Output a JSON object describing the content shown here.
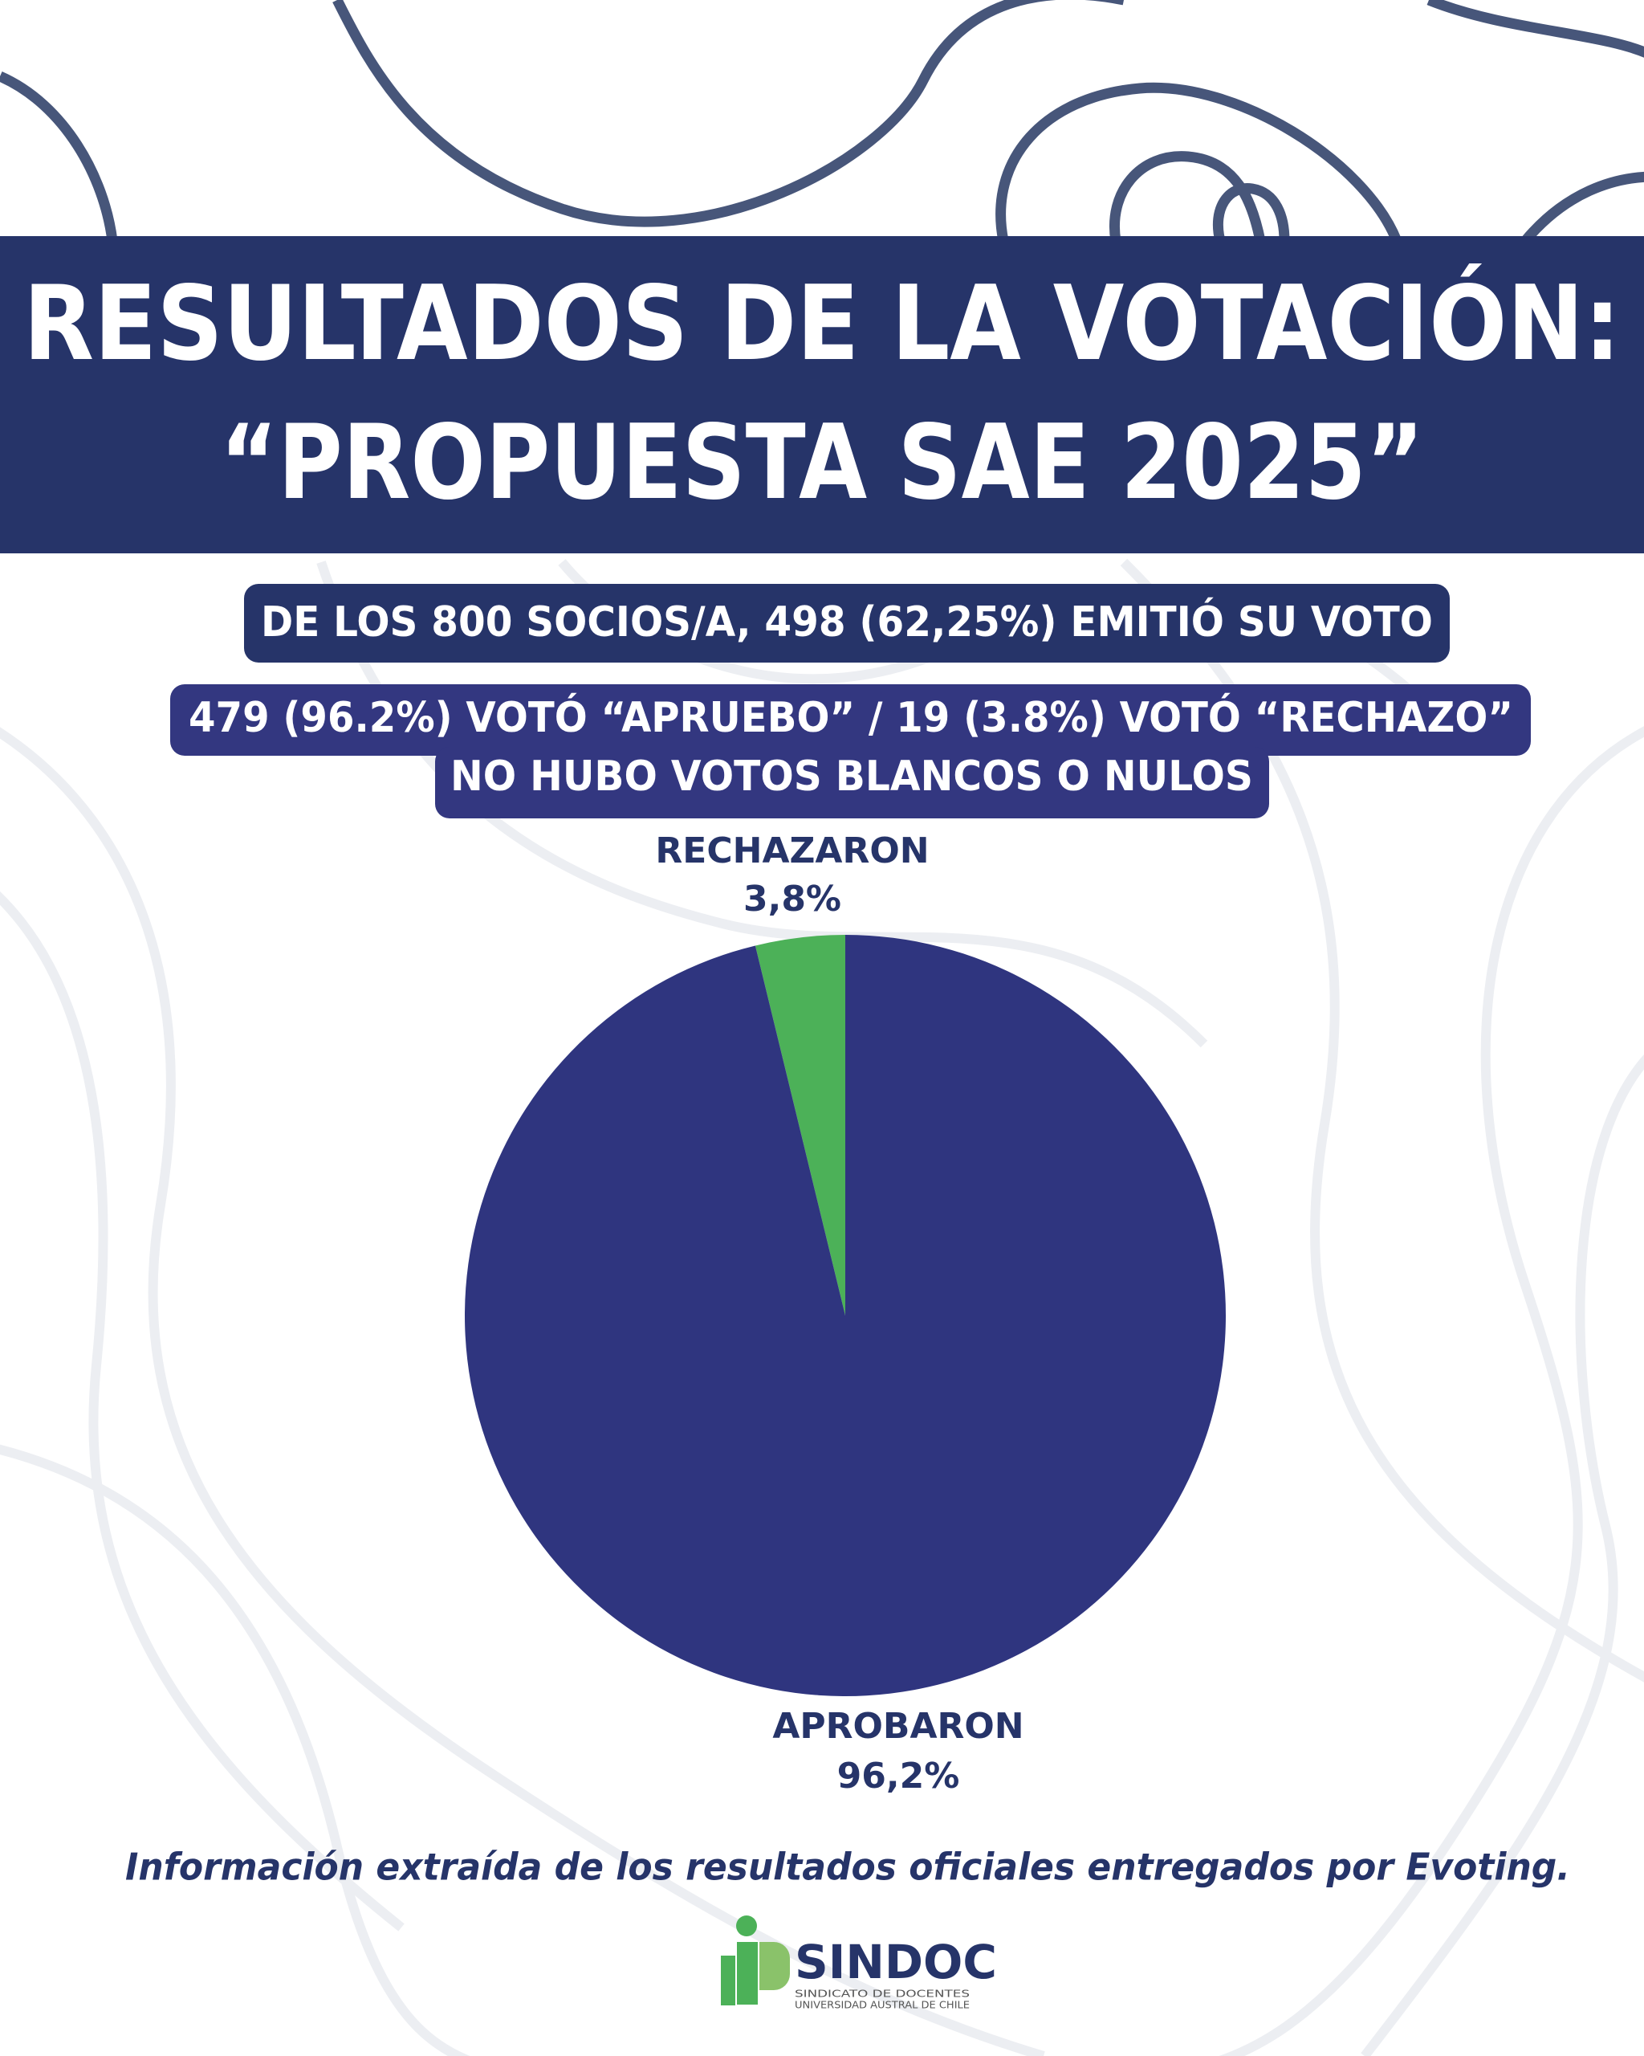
{
  "chart_data": {
    "type": "pie",
    "title": [
      "RESULTADOS DE LA VOTACIÓN:",
      "“PROPUESTA SAE 2025”"
    ],
    "annotations": [
      "DE LOS 800 SOCIOS/A, 498 (62,25%) EMITIÓ SU VOTO",
      "479 (96.2%) VOTÓ “APRUEBO” / 19 (3.8%) VOTÓ “RECHAZO”",
      "NO HUBO VOTOS BLANCOS O NULOS"
    ],
    "categories": [
      "RECHAZARON",
      "APROBARON"
    ],
    "values": [
      3.8,
      96.2
    ],
    "value_labels": [
      "3,8%",
      "96,2%"
    ],
    "colors": [
      "#4cb158",
      "#2f357f"
    ],
    "source": "Información extraída de los resultados oficiales entregados por Evoting.",
    "logo": {
      "name": "SINDOC",
      "line1": "SINDICATO DE DOCENTES",
      "line2": "UNIVERSIDAD AUSTRAL DE CHILE"
    }
  }
}
